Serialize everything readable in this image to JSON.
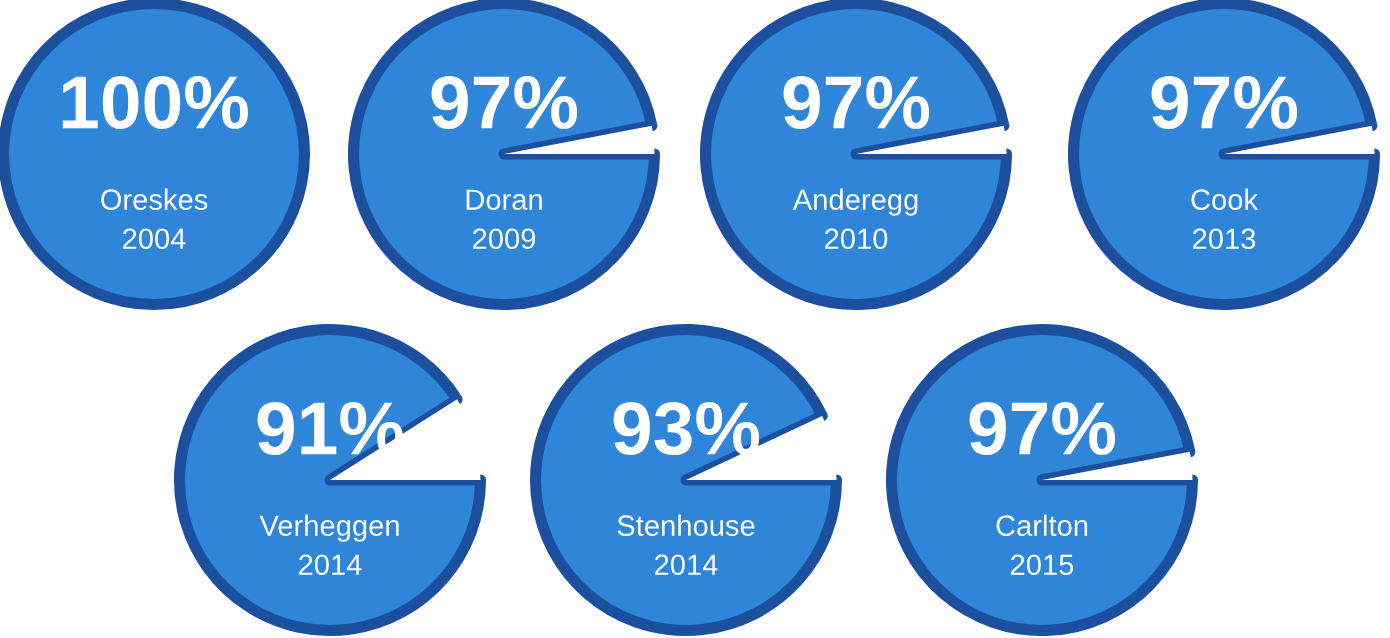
{
  "chart_data": [
    {
      "type": "pie",
      "values": [
        100,
        0
      ],
      "colors": [
        "#2f86d8",
        "#ffffff"
      ],
      "value_labels": [
        "100%",
        null
      ],
      "annotations": [
        "Oreskes",
        "2004"
      ]
    },
    {
      "type": "pie",
      "values": [
        97,
        3
      ],
      "colors": [
        "#2f86d8",
        "#ffffff"
      ],
      "value_labels": [
        "97%",
        null
      ],
      "annotations": [
        "Doran",
        "2009"
      ]
    },
    {
      "type": "pie",
      "values": [
        97,
        3
      ],
      "colors": [
        "#2f86d8",
        "#ffffff"
      ],
      "value_labels": [
        "97%",
        null
      ],
      "annotations": [
        "Anderegg",
        "2010"
      ]
    },
    {
      "type": "pie",
      "values": [
        97,
        3
      ],
      "colors": [
        "#2f86d8",
        "#ffffff"
      ],
      "value_labels": [
        "97%",
        null
      ],
      "annotations": [
        "Cook",
        "2013"
      ]
    },
    {
      "type": "pie",
      "values": [
        91,
        9
      ],
      "colors": [
        "#2f86d8",
        "#ffffff"
      ],
      "value_labels": [
        "91%",
        null
      ],
      "annotations": [
        "Verheggen",
        "2014"
      ]
    },
    {
      "type": "pie",
      "values": [
        93,
        7
      ],
      "colors": [
        "#2f86d8",
        "#ffffff"
      ],
      "value_labels": [
        "93%",
        null
      ],
      "annotations": [
        "Stenhouse",
        "2014"
      ]
    },
    {
      "type": "pie",
      "values": [
        97,
        3
      ],
      "colors": [
        "#2f86d8",
        "#ffffff"
      ],
      "value_labels": [
        "97%",
        null
      ],
      "annotations": [
        "Carlton",
        "2015"
      ]
    }
  ]
}
